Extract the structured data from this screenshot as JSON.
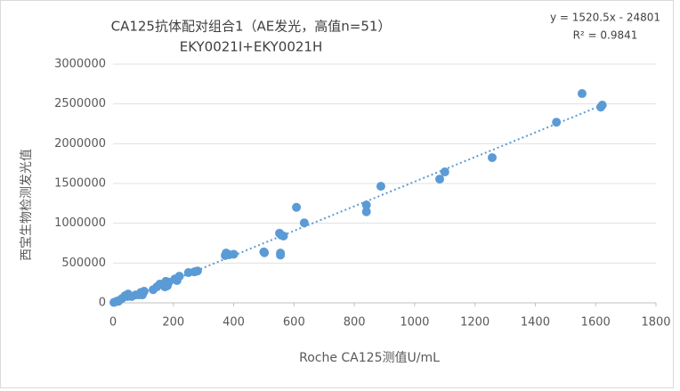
{
  "chart_data": {
    "type": "scatter",
    "title": "CA125抗体配对组合1（AE发光，高值n=51）",
    "subtitle": "EKY0021I+EKY0021H",
    "annotations": [
      "y = 1520.5x - 24801",
      "R² = 0.9841"
    ],
    "x_label": "Roche CA125测值U/mL",
    "y_label": "西宝生物检测发光值",
    "color": "#5b9bd5",
    "trendline": true,
    "x": [
      3,
      12,
      20,
      30,
      40,
      50,
      48,
      75,
      85,
      92,
      103,
      97,
      145,
      155,
      170,
      175,
      180,
      185,
      205,
      220,
      250,
      270,
      280,
      375,
      385,
      400,
      500,
      502,
      552,
      565,
      555,
      555,
      608,
      634,
      840,
      840,
      888,
      1083,
      1100,
      1257,
      1470,
      1555,
      1617,
      1622,
      62,
      133,
      212,
      18,
      172,
      372,
      558
    ],
    "values": [
      5000,
      20000,
      30000,
      55000,
      90000,
      110000,
      80000,
      100000,
      100000,
      130000,
      145000,
      100000,
      200000,
      235000,
      225000,
      270000,
      215000,
      260000,
      300000,
      335000,
      380000,
      390000,
      400000,
      625000,
      605000,
      610000,
      640000,
      630000,
      875000,
      840000,
      625000,
      600000,
      1200000,
      1005000,
      1230000,
      1145000,
      1465000,
      1555000,
      1645000,
      1825000,
      2270000,
      2630000,
      2460000,
      2485000,
      80000,
      165000,
      280000,
      20000,
      200000,
      595000,
      850000
    ],
    "xlim": [
      0,
      1800
    ],
    "xticks": [
      0,
      200,
      400,
      600,
      800,
      1000,
      1200,
      1400,
      1600,
      1800
    ],
    "ylim": [
      0,
      3000000
    ],
    "yticks": [
      0,
      500000,
      1000000,
      1500000,
      2000000,
      2500000,
      3000000
    ]
  }
}
